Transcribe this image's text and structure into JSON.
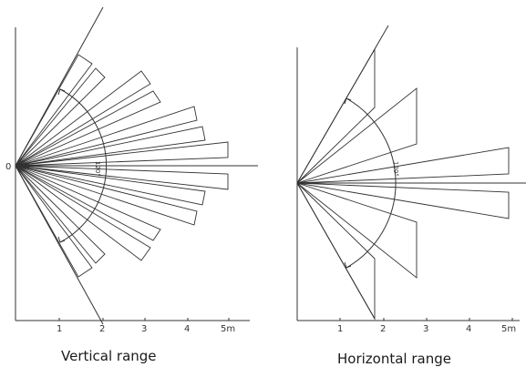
{
  "vertical": {
    "caption": "Vertical range",
    "origin_label": "0",
    "angle_label": "120°",
    "ticks": [
      "1",
      "2",
      "3",
      "4",
      "5m"
    ]
  },
  "horizontal": {
    "caption": "Horizontal range",
    "angle_label": "120°",
    "ticks": [
      "1",
      "2",
      "3",
      "4",
      "5m"
    ]
  }
}
